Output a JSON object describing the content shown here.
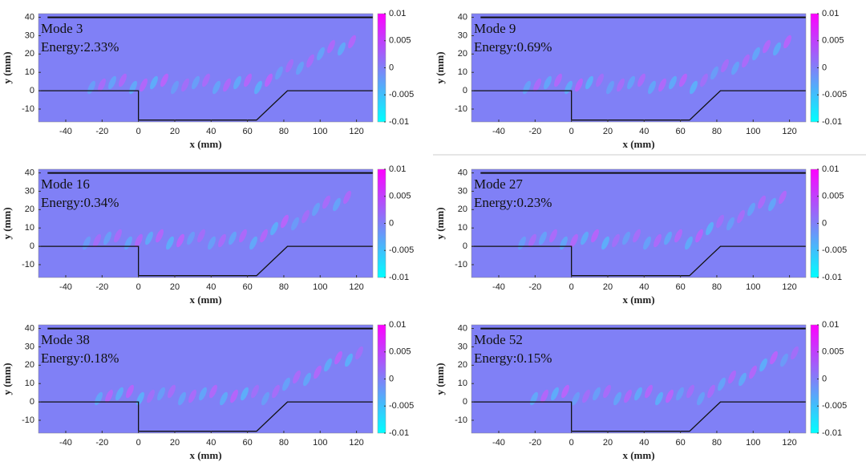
{
  "chart_data": [
    {
      "type": "heatmap",
      "title": "Mode 3",
      "subtitle": "Energy:2.33%",
      "xlabel": "x (mm)",
      "ylabel": "y (mm)",
      "xlim": [
        -55,
        129
      ],
      "ylim": [
        -17,
        42
      ],
      "xticks": [
        -40,
        -20,
        0,
        20,
        40,
        60,
        80,
        100,
        120
      ],
      "yticks": [
        -10,
        0,
        10,
        20,
        30,
        40
      ],
      "clim": [
        -0.01,
        0.01
      ],
      "cticks": [
        -0.01,
        -0.005,
        0,
        0.005,
        0.01
      ],
      "lines": [
        {
          "x": [
            -55,
            0,
            0,
            65,
            82,
            129
          ],
          "y": [
            0,
            0,
            -16,
            -16,
            0,
            0
          ]
        },
        {
          "x": [
            -50,
            129
          ],
          "y": [
            40,
            40
          ]
        }
      ]
    },
    {
      "type": "heatmap",
      "title": "Mode 9",
      "subtitle": "Energy:0.69%",
      "xlabel": "x (mm)",
      "ylabel": "y (mm)",
      "xlim": [
        -55,
        129
      ],
      "ylim": [
        -17,
        42
      ],
      "xticks": [
        -40,
        -20,
        0,
        20,
        40,
        60,
        80,
        100,
        120
      ],
      "yticks": [
        -10,
        0,
        10,
        20,
        30,
        40
      ],
      "clim": [
        -0.01,
        0.01
      ],
      "cticks": [
        -0.01,
        -0.005,
        0,
        0.005,
        0.01
      ],
      "lines": [
        {
          "x": [
            -55,
            0,
            0,
            65,
            82,
            129
          ],
          "y": [
            0,
            0,
            -16,
            -16,
            0,
            0
          ]
        },
        {
          "x": [
            -50,
            129
          ],
          "y": [
            40,
            40
          ]
        }
      ]
    },
    {
      "type": "heatmap",
      "title": "Mode 16",
      "subtitle": "Energy:0.34%",
      "xlabel": "x (mm)",
      "ylabel": "y (mm)",
      "xlim": [
        -55,
        129
      ],
      "ylim": [
        -17,
        42
      ],
      "xticks": [
        -40,
        -20,
        0,
        20,
        40,
        60,
        80,
        100,
        120
      ],
      "yticks": [
        -10,
        0,
        10,
        20,
        30,
        40
      ],
      "clim": [
        -0.01,
        0.01
      ],
      "cticks": [
        -0.01,
        -0.005,
        0,
        0.005,
        0.01
      ],
      "lines": [
        {
          "x": [
            -55,
            0,
            0,
            65,
            82,
            129
          ],
          "y": [
            0,
            0,
            -16,
            -16,
            0,
            0
          ]
        },
        {
          "x": [
            -50,
            129
          ],
          "y": [
            40,
            40
          ]
        }
      ]
    },
    {
      "type": "heatmap",
      "title": "Mode 27",
      "subtitle": "Energy:0.23%",
      "xlabel": "x (mm)",
      "ylabel": "y (mm)",
      "xlim": [
        -55,
        129
      ],
      "ylim": [
        -17,
        42
      ],
      "xticks": [
        -40,
        -20,
        0,
        20,
        40,
        60,
        80,
        100,
        120
      ],
      "yticks": [
        -10,
        0,
        10,
        20,
        30,
        40
      ],
      "clim": [
        -0.01,
        0.01
      ],
      "cticks": [
        -0.01,
        -0.005,
        0,
        0.005,
        0.01
      ],
      "lines": [
        {
          "x": [
            -55,
            0,
            0,
            65,
            82,
            129
          ],
          "y": [
            0,
            0,
            -16,
            -16,
            0,
            0
          ]
        },
        {
          "x": [
            -50,
            129
          ],
          "y": [
            40,
            40
          ]
        }
      ]
    },
    {
      "type": "heatmap",
      "title": "Mode 38",
      "subtitle": "Energy:0.18%",
      "xlabel": "x (mm)",
      "ylabel": "y (mm)",
      "xlim": [
        -55,
        129
      ],
      "ylim": [
        -17,
        42
      ],
      "xticks": [
        -40,
        -20,
        0,
        20,
        40,
        60,
        80,
        100,
        120
      ],
      "yticks": [
        -10,
        0,
        10,
        20,
        30,
        40
      ],
      "clim": [
        -0.01,
        0.01
      ],
      "cticks": [
        -0.01,
        -0.005,
        0,
        0.005,
        0.01
      ],
      "lines": [
        {
          "x": [
            -55,
            0,
            0,
            65,
            82,
            129
          ],
          "y": [
            0,
            0,
            -16,
            -16,
            0,
            0
          ]
        },
        {
          "x": [
            -50,
            129
          ],
          "y": [
            40,
            40
          ]
        }
      ]
    },
    {
      "type": "heatmap",
      "title": "Mode 52",
      "subtitle": "Energy:0.15%",
      "xlabel": "x (mm)",
      "ylabel": "y (mm)",
      "xlim": [
        -55,
        129
      ],
      "ylim": [
        -17,
        42
      ],
      "xticks": [
        -40,
        -20,
        0,
        20,
        40,
        60,
        80,
        100,
        120
      ],
      "yticks": [
        -10,
        0,
        10,
        20,
        30,
        40
      ],
      "clim": [
        -0.01,
        0.01
      ],
      "cticks": [
        -0.01,
        -0.005,
        0,
        0.005,
        0.01
      ],
      "lines": [
        {
          "x": [
            -55,
            0,
            0,
            65,
            82,
            129
          ],
          "y": [
            0,
            0,
            -16,
            -16,
            0,
            0
          ]
        },
        {
          "x": [
            -50,
            129
          ],
          "y": [
            40,
            40
          ]
        }
      ]
    }
  ]
}
